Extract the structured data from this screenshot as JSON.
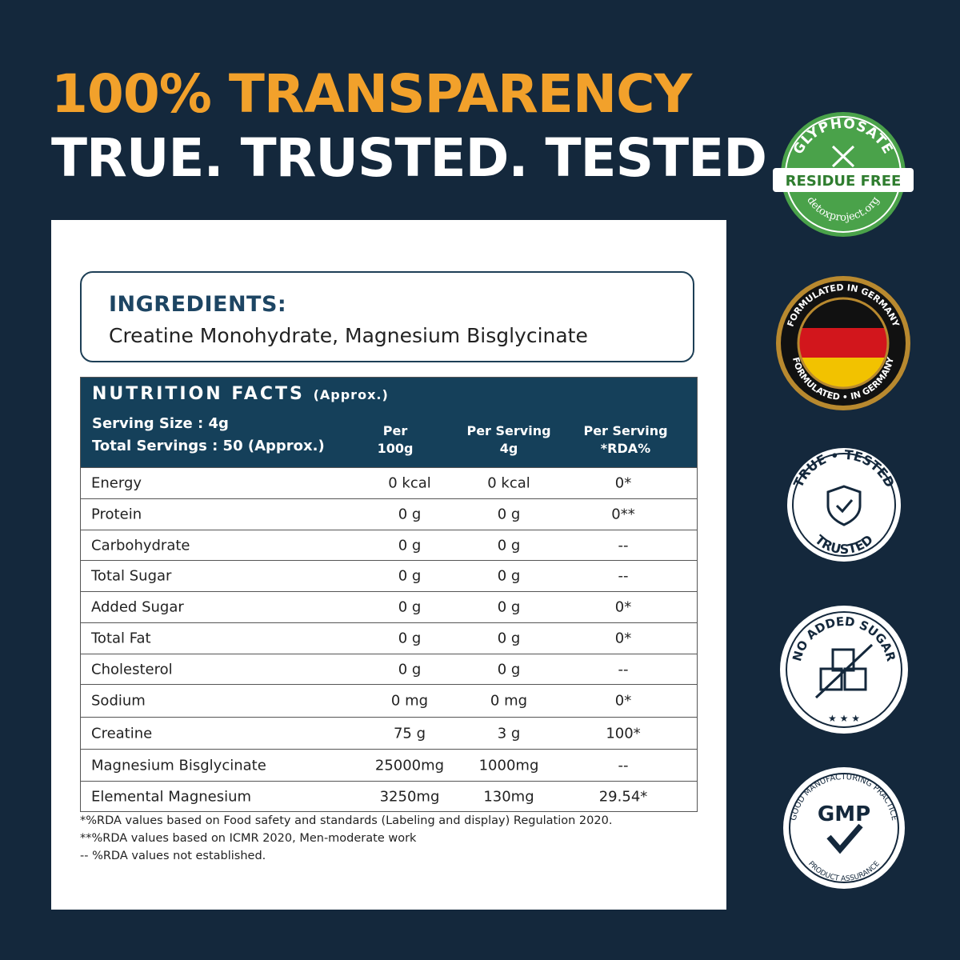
{
  "headline": {
    "line1": "100% TRANSPARENCY",
    "line2": "TRUE. TRUSTED. TESTED"
  },
  "ingredients": {
    "title": "INGREDIENTS:",
    "text": "Creatine Monohydrate, Magnesium Bisglycinate"
  },
  "nutrition": {
    "title": "NUTRITION FACTS",
    "title_suffix": "(Approx.)",
    "serving_size": "Serving Size : 4g",
    "total_servings": "Total Servings : 50 (Approx.)",
    "col1": [
      "Per",
      "100g"
    ],
    "col2": [
      "Per Serving",
      "4g"
    ],
    "col3": [
      "Per Serving",
      "*RDA%"
    ],
    "rows": [
      {
        "name": "Energy",
        "per100": "0 kcal",
        "serving": "0 kcal",
        "rda": "0*"
      },
      {
        "name": "Protein",
        "per100": "0 g",
        "serving": "0 g",
        "rda": "0**"
      },
      {
        "name": "Carbohydrate",
        "per100": "0 g",
        "serving": "0 g",
        "rda": "--"
      },
      {
        "name": "Total Sugar",
        "per100": "0 g",
        "serving": "0 g",
        "rda": "--"
      },
      {
        "name": "Added Sugar",
        "per100": "0 g",
        "serving": "0 g",
        "rda": "0*"
      },
      {
        "name": "Total Fat",
        "per100": "0 g",
        "serving": "0 g",
        "rda": "0*"
      },
      {
        "name": "Cholesterol",
        "per100": "0 g",
        "serving": "0 g",
        "rda": "--"
      },
      {
        "name": "Sodium",
        "per100": "0 mg",
        "serving": "0 mg",
        "rda": "0*"
      },
      {
        "name": "Creatine",
        "per100": "75 g",
        "serving": "3 g",
        "rda": "100*"
      },
      {
        "name": "Magnesium Bisglycinate",
        "per100": "25000mg",
        "serving": "1000mg",
        "rda": "--"
      },
      {
        "name": "Elemental Magnesium",
        "per100": "3250mg",
        "serving": "130mg",
        "rda": "29.54*"
      }
    ]
  },
  "footnotes": [
    "*%RDA values based on Food safety and standards (Labeling and display) Regulation 2020.",
    "**%RDA values based on ICMR 2020, Men-moderate work",
    "-- %RDA values not established."
  ],
  "badges": {
    "glyphosate": {
      "top": "GLYPHOSATE",
      "banner": "RESIDUE FREE",
      "bottom": "detoxproject.org",
      "color": "#4aa24a",
      "icon": "fork-knife-cross-icon"
    },
    "germany": {
      "top": "FORMULATED IN GERMANY",
      "bottom": "FORMULATED • IN GERMANY",
      "icon": "german-flag-icon"
    },
    "tested": {
      "top": "TRUE • TESTED",
      "bottom": "TRUSTED",
      "icon": "shield-check-icon"
    },
    "sugar": {
      "top": "NO ADDED SUGAR",
      "icon": "sugar-cubes-crossed-icon"
    },
    "gmp": {
      "center": "GMP",
      "top": "GOOD MANUFACTURING PRACTICE",
      "bottom": "PRODUCT ASSURANCE",
      "icon": "checkmark-icon"
    }
  },
  "colors": {
    "background": "#14283c",
    "accent": "#f2a12b",
    "table_header": "#15405a"
  }
}
